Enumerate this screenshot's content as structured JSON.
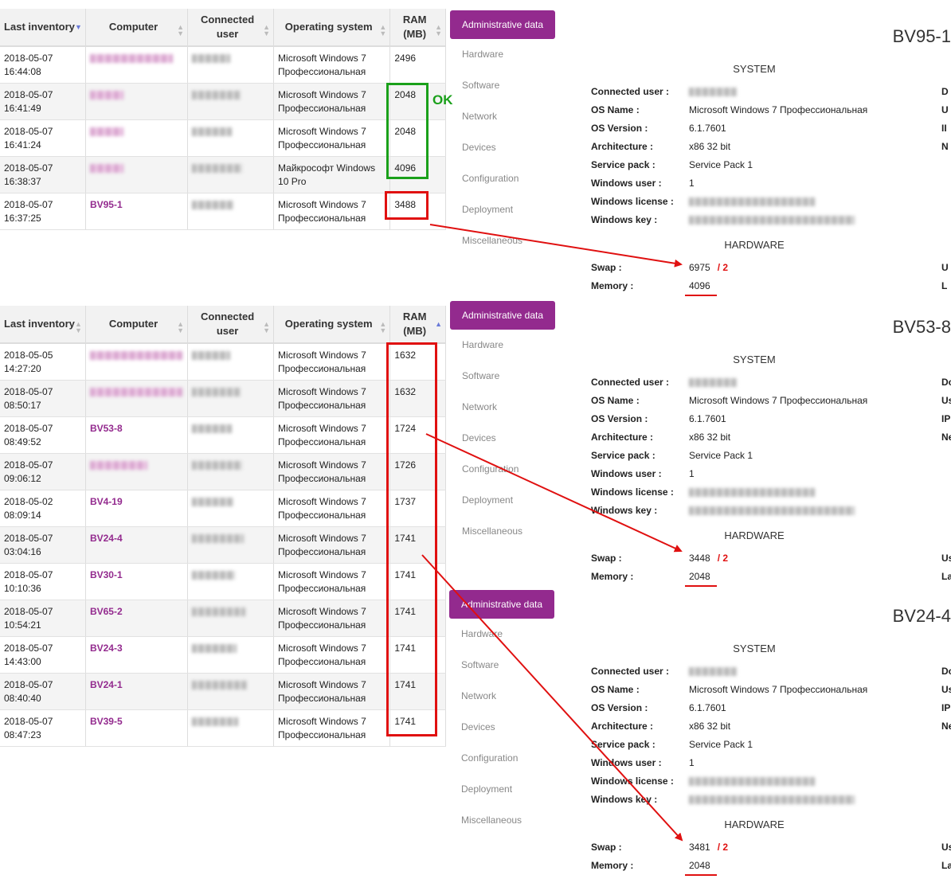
{
  "table_headers": [
    {
      "label": "Last inventory"
    },
    {
      "label": "Computer"
    },
    {
      "label": "Connected user"
    },
    {
      "label": "Operating system"
    },
    {
      "label": "RAM (MB)"
    }
  ],
  "table1": {
    "sorted_by": "Last inventory",
    "rows": [
      {
        "date": "2018-05-07",
        "time": "16:44:08",
        "computer": "",
        "os1": "Microsoft Windows 7",
        "os2": "Профессиональная",
        "ram": "2496"
      },
      {
        "date": "2018-05-07",
        "time": "16:41:49",
        "computer": "",
        "os1": "Microsoft Windows 7",
        "os2": "Профессиональная",
        "ram": "2048"
      },
      {
        "date": "2018-05-07",
        "time": "16:41:24",
        "computer": "",
        "os1": "Microsoft Windows 7",
        "os2": "Профессиональная",
        "ram": "2048"
      },
      {
        "date": "2018-05-07",
        "time": "16:38:37",
        "computer": "",
        "os1": "Майкрософт Windows",
        "os2": "10 Pro",
        "ram": "4096"
      },
      {
        "date": "2018-05-07",
        "time": "16:37:25",
        "computer": "BV95-1",
        "os1": "Microsoft Windows 7",
        "os2": "Профессиональная",
        "ram": "3488"
      }
    ]
  },
  "table2": {
    "sorted_by": "RAM (MB)",
    "rows": [
      {
        "date": "2018-05-05",
        "time": "14:27:20",
        "computer": "",
        "os1": "Microsoft Windows 7",
        "os2": "Профессиональная",
        "ram": "1632"
      },
      {
        "date": "2018-05-07",
        "time": "08:50:17",
        "computer": "",
        "os1": "Microsoft Windows 7",
        "os2": "Профессиональная",
        "ram": "1632"
      },
      {
        "date": "2018-05-07",
        "time": "08:49:52",
        "computer": "BV53-8",
        "os1": "Microsoft Windows 7",
        "os2": "Профессиональная",
        "ram": "1724"
      },
      {
        "date": "2018-05-07",
        "time": "09:06:12",
        "computer": "",
        "os1": "Microsoft Windows 7",
        "os2": "Профессиональная",
        "ram": "1726"
      },
      {
        "date": "2018-05-02",
        "time": "08:09:14",
        "computer": "BV4-19",
        "os1": "Microsoft Windows 7",
        "os2": "Профессиональная",
        "ram": "1737"
      },
      {
        "date": "2018-05-07",
        "time": "03:04:16",
        "computer": "BV24-4",
        "os1": "Microsoft Windows 7",
        "os2": "Профессиональная",
        "ram": "1741"
      },
      {
        "date": "2018-05-07",
        "time": "10:10:36",
        "computer": "BV30-1",
        "os1": "Microsoft Windows 7",
        "os2": "Профессиональная",
        "ram": "1741"
      },
      {
        "date": "2018-05-07",
        "time": "10:54:21",
        "computer": "BV65-2",
        "os1": "Microsoft Windows 7",
        "os2": "Профессиональная",
        "ram": "1741"
      },
      {
        "date": "2018-05-07",
        "time": "14:43:00",
        "computer": "BV24-3",
        "os1": "Microsoft Windows 7",
        "os2": "Профессиональная",
        "ram": "1741"
      },
      {
        "date": "2018-05-07",
        "time": "08:40:40",
        "computer": "BV24-1",
        "os1": "Microsoft Windows 7",
        "os2": "Профессиональная",
        "ram": "1741"
      },
      {
        "date": "2018-05-07",
        "time": "08:47:23",
        "computer": "BV39-5",
        "os1": "Microsoft Windows 7",
        "os2": "Профессиональная",
        "ram": "1741"
      }
    ]
  },
  "sidebar": {
    "admin_label": "Administrative data",
    "items": [
      "Hardware",
      "Software",
      "Network",
      "Devices",
      "Configuration",
      "Deployment",
      "Miscellaneous"
    ]
  },
  "labels": {
    "system": "SYSTEM",
    "hardware": "HARDWARE",
    "connected_user": "Connected user :",
    "os_name": "OS Name :",
    "os_version": "OS Version :",
    "architecture": "Architecture :",
    "service_pack": "Service pack :",
    "windows_user": "Windows user :",
    "windows_license": "Windows license :",
    "windows_key": "Windows key :",
    "swap": "Swap :",
    "memory": "Memory :"
  },
  "panels": [
    {
      "title": "BV95-1",
      "os_name": "Microsoft Windows 7 Профессиональная",
      "os_version": "6.1.7601",
      "architecture": "x86 32 bit",
      "service_pack": "Service Pack 1",
      "windows_user": "1",
      "swap": "6975",
      "memory": "4096",
      "right_tags": [
        "D",
        "U",
        "II",
        "N"
      ],
      "hw_tags": [
        "U",
        "L"
      ]
    },
    {
      "title": "BV53-8",
      "os_name": "Microsoft Windows 7 Профессиональная",
      "os_version": "6.1.7601",
      "architecture": "x86 32 bit",
      "service_pack": "Service Pack 1",
      "windows_user": "1",
      "swap": "3448",
      "memory": "2048",
      "right_tags": [
        "Do",
        "Us",
        "IP",
        "Ne"
      ],
      "hw_tags": [
        "Us",
        "La"
      ]
    },
    {
      "title": "BV24-4",
      "os_name": "Microsoft Windows 7 Профессиональная",
      "os_version": "6.1.7601",
      "architecture": "x86 32 bit",
      "service_pack": "Service Pack 1",
      "windows_user": "1",
      "swap": "3481",
      "memory": "2048",
      "right_tags": [
        "Do",
        "Us",
        "IP",
        "Ne"
      ],
      "hw_tags": [
        "Us",
        "La"
      ]
    }
  ],
  "annotations": {
    "ok_label": "OK",
    "divide_label": "/ 2",
    "colors": {
      "ok_green": "#1aa01a",
      "alert_red": "#e01010",
      "accent_purple": "#932a8e"
    }
  }
}
